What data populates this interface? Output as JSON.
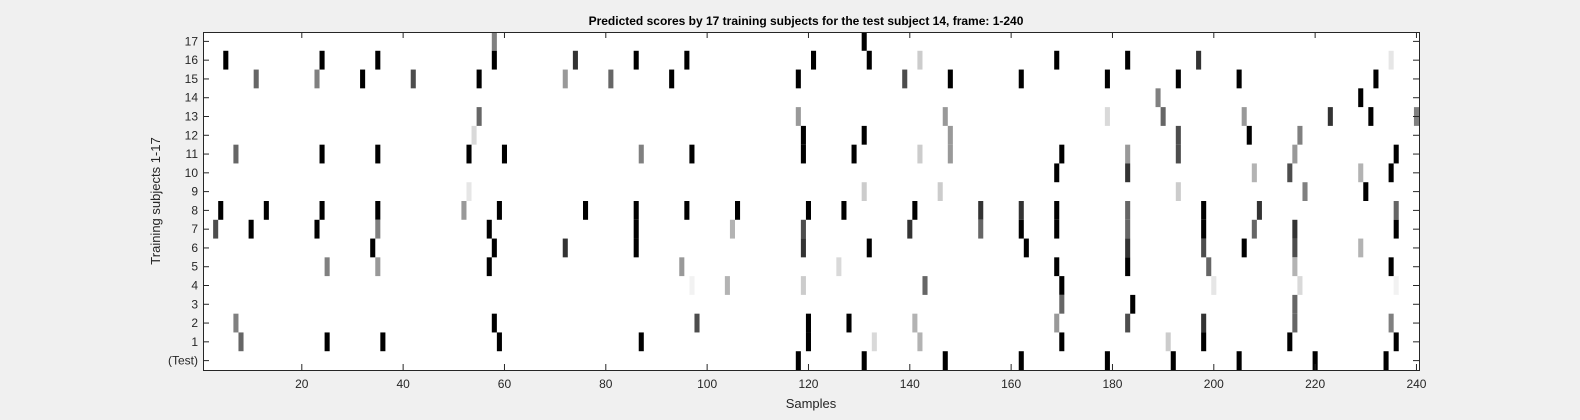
{
  "chart_data": {
    "type": "heatmap",
    "title": "Predicted scores by 17 training subjects for the test subject 14, frame: 1-240",
    "xlabel": "Samples",
    "ylabel": "Training subjects 1-17",
    "xlim": [
      1,
      240
    ],
    "xticks": [
      20,
      40,
      60,
      80,
      100,
      120,
      140,
      160,
      180,
      200,
      220,
      240
    ],
    "ytick_labels": [
      "17",
      "16",
      "15",
      "14",
      "13",
      "12",
      "11",
      "10",
      "9",
      "8",
      "7",
      "6",
      "5",
      "4",
      "3",
      "2",
      "1",
      "(Test)"
    ],
    "colormap": "gray (white = 0, black = 1)",
    "colors": {
      "background": "#f0f0f0",
      "plot": "#ffffff",
      "axis": "#262626"
    },
    "rows": [
      {
        "label": "17",
        "cells": [
          [
            58,
            0.5
          ],
          [
            131,
            1
          ]
        ]
      },
      {
        "label": "16",
        "cells": [
          [
            5,
            1
          ],
          [
            24,
            1
          ],
          [
            35,
            1
          ],
          [
            58,
            1
          ],
          [
            74,
            0.8
          ],
          [
            86,
            1
          ],
          [
            96,
            1
          ],
          [
            121,
            1
          ],
          [
            132,
            1
          ],
          [
            142,
            0.2
          ],
          [
            169,
            1
          ],
          [
            183,
            1
          ],
          [
            197,
            0.8
          ],
          [
            235,
            0.1
          ]
        ]
      },
      {
        "label": "15",
        "cells": [
          [
            11,
            0.6
          ],
          [
            23,
            0.5
          ],
          [
            32,
            1
          ],
          [
            42,
            0.7
          ],
          [
            55,
            1
          ],
          [
            72,
            0.4
          ],
          [
            81,
            0.6
          ],
          [
            93,
            1
          ],
          [
            118,
            1
          ],
          [
            139,
            0.7
          ],
          [
            148,
            1
          ],
          [
            162,
            1
          ],
          [
            179,
            1
          ],
          [
            193,
            1
          ],
          [
            205,
            1
          ],
          [
            232,
            1
          ]
        ]
      },
      {
        "label": "14",
        "cells": [
          [
            189,
            0.5
          ],
          [
            229,
            1
          ]
        ]
      },
      {
        "label": "13",
        "cells": [
          [
            55,
            0.6
          ],
          [
            118,
            0.4
          ],
          [
            147,
            0.4
          ],
          [
            179,
            0.15
          ],
          [
            190,
            0.6
          ],
          [
            206,
            0.4
          ],
          [
            223,
            0.8
          ],
          [
            231,
            1
          ],
          [
            240,
            0.5
          ]
        ]
      },
      {
        "label": "12",
        "cells": [
          [
            54,
            0.15
          ],
          [
            119,
            1
          ],
          [
            131,
            1
          ],
          [
            148,
            0.4
          ],
          [
            193,
            0.7
          ],
          [
            207,
            1
          ],
          [
            217,
            0.5
          ]
        ]
      },
      {
        "label": "11",
        "cells": [
          [
            7,
            0.6
          ],
          [
            24,
            1
          ],
          [
            35,
            1
          ],
          [
            53,
            1
          ],
          [
            60,
            1
          ],
          [
            87,
            0.5
          ],
          [
            97,
            1
          ],
          [
            119,
            1
          ],
          [
            129,
            1
          ],
          [
            142,
            0.2
          ],
          [
            148,
            0.4
          ],
          [
            170,
            1
          ],
          [
            183,
            0.4
          ],
          [
            193,
            0.7
          ],
          [
            216,
            0.4
          ],
          [
            236,
            1
          ]
        ]
      },
      {
        "label": "10",
        "cells": [
          [
            169,
            1
          ],
          [
            183,
            0.8
          ],
          [
            208,
            0.3
          ],
          [
            215,
            0.7
          ],
          [
            229,
            0.3
          ],
          [
            235,
            1
          ]
        ]
      },
      {
        "label": "9",
        "cells": [
          [
            53,
            0.1
          ],
          [
            131,
            0.2
          ],
          [
            146,
            0.2
          ],
          [
            193,
            0.2
          ],
          [
            218,
            0.5
          ],
          [
            230,
            1
          ]
        ]
      },
      {
        "label": "8",
        "cells": [
          [
            4,
            1
          ],
          [
            13,
            1
          ],
          [
            24,
            1
          ],
          [
            35,
            1
          ],
          [
            52,
            0.4
          ],
          [
            59,
            1
          ],
          [
            76,
            1
          ],
          [
            86,
            1
          ],
          [
            96,
            1
          ],
          [
            106,
            1
          ],
          [
            120,
            1
          ],
          [
            127,
            1
          ],
          [
            141,
            1
          ],
          [
            154,
            0.8
          ],
          [
            162,
            0.8
          ],
          [
            169,
            1
          ],
          [
            183,
            0.6
          ],
          [
            198,
            1
          ],
          [
            209,
            0.8
          ],
          [
            236,
            0.6
          ]
        ]
      },
      {
        "label": "7",
        "cells": [
          [
            3,
            0.7
          ],
          [
            10,
            1
          ],
          [
            23,
            1
          ],
          [
            35,
            0.5
          ],
          [
            57,
            1
          ],
          [
            86,
            1
          ],
          [
            105,
            0.3
          ],
          [
            119,
            0.7
          ],
          [
            140,
            0.8
          ],
          [
            154,
            0.6
          ],
          [
            162,
            1
          ],
          [
            169,
            1
          ],
          [
            183,
            0.6
          ],
          [
            198,
            1
          ],
          [
            208,
            0.6
          ],
          [
            216,
            0.8
          ],
          [
            236,
            1
          ]
        ]
      },
      {
        "label": "6",
        "cells": [
          [
            34,
            1
          ],
          [
            58,
            1
          ],
          [
            72,
            0.8
          ],
          [
            86,
            1
          ],
          [
            119,
            0.8
          ],
          [
            132,
            1
          ],
          [
            163,
            1
          ],
          [
            183,
            0.8
          ],
          [
            198,
            0.7
          ],
          [
            206,
            1
          ],
          [
            216,
            0.7
          ],
          [
            229,
            0.3
          ]
        ]
      },
      {
        "label": "5",
        "cells": [
          [
            25,
            0.5
          ],
          [
            35,
            0.4
          ],
          [
            57,
            1
          ],
          [
            95,
            0.4
          ],
          [
            126,
            0.15
          ],
          [
            169,
            1
          ],
          [
            183,
            1
          ],
          [
            199,
            0.6
          ],
          [
            216,
            0.3
          ],
          [
            235,
            1
          ]
        ]
      },
      {
        "label": "4",
        "cells": [
          [
            97,
            0.05
          ],
          [
            104,
            0.3
          ],
          [
            119,
            0.2
          ],
          [
            143,
            0.6
          ],
          [
            170,
            1
          ],
          [
            200,
            0.1
          ],
          [
            217,
            0.15
          ],
          [
            236,
            0.05
          ]
        ]
      },
      {
        "label": "3",
        "cells": [
          [
            170,
            0.6
          ],
          [
            184,
            1
          ],
          [
            216,
            0.6
          ]
        ]
      },
      {
        "label": "2",
        "cells": [
          [
            7,
            0.5
          ],
          [
            58,
            1
          ],
          [
            98,
            0.7
          ],
          [
            120,
            1
          ],
          [
            128,
            1
          ],
          [
            141,
            0.3
          ],
          [
            169,
            0.4
          ],
          [
            183,
            0.7
          ],
          [
            198,
            0.8
          ],
          [
            216,
            0.6
          ],
          [
            235,
            0.5
          ]
        ]
      },
      {
        "label": "1",
        "cells": [
          [
            8,
            0.6
          ],
          [
            25,
            1
          ],
          [
            36,
            1
          ],
          [
            59,
            1
          ],
          [
            87,
            1
          ],
          [
            120,
            1
          ],
          [
            133,
            0.15
          ],
          [
            142,
            0.3
          ],
          [
            170,
            1
          ],
          [
            191,
            0.2
          ],
          [
            198,
            1
          ],
          [
            215,
            1
          ],
          [
            236,
            1
          ]
        ]
      },
      {
        "label": "(Test)",
        "cells": [
          [
            118,
            1
          ],
          [
            131,
            1
          ],
          [
            147,
            1
          ],
          [
            162,
            1
          ],
          [
            179,
            1
          ],
          [
            192,
            1
          ],
          [
            205,
            1
          ],
          [
            220,
            1
          ],
          [
            234,
            1
          ]
        ]
      }
    ]
  }
}
